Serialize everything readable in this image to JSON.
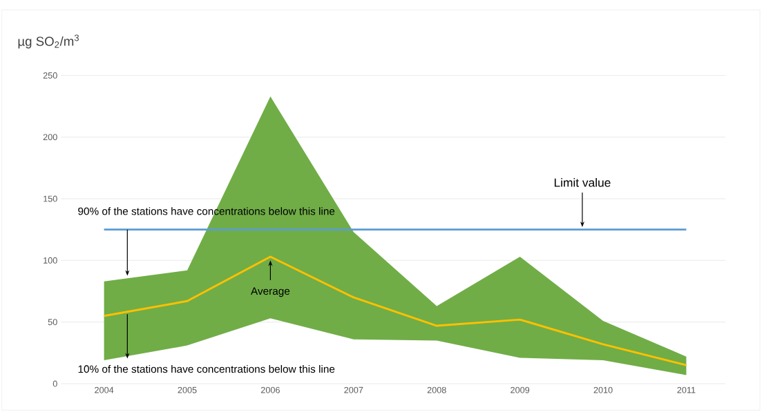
{
  "chart_data": {
    "type": "line",
    "ylabel": "µg SO$_{2}$/m$^{3}$",
    "categories": [
      "2004",
      "2005",
      "2006",
      "2007",
      "2008",
      "2009",
      "2010",
      "2011"
    ],
    "series": [
      {
        "color": "#ffc000",
        "values": [
          55,
          67,
          103,
          70,
          47,
          52,
          32,
          15
        ],
        "lower": [
          19,
          31,
          53,
          36,
          35,
          21,
          19,
          7
        ],
        "upper": [
          83,
          92,
          233,
          123,
          63,
          103,
          51,
          22
        ]
      }
    ],
    "ylim": [
      0,
      250
    ],
    "yticks": [
      0,
      50,
      100,
      150,
      200,
      250
    ],
    "grid": "y",
    "ref_lines": [
      {
        "axis": "y",
        "value": 125,
        "label": "Limit value",
        "color": "#5b9bd5"
      }
    ],
    "annotations": [
      "90% of the stations have concentrations below this line",
      "10% of the stations have concentrations below this line",
      {
        "text": "Average",
        "x": "2006",
        "y": 103
      }
    ]
  }
}
